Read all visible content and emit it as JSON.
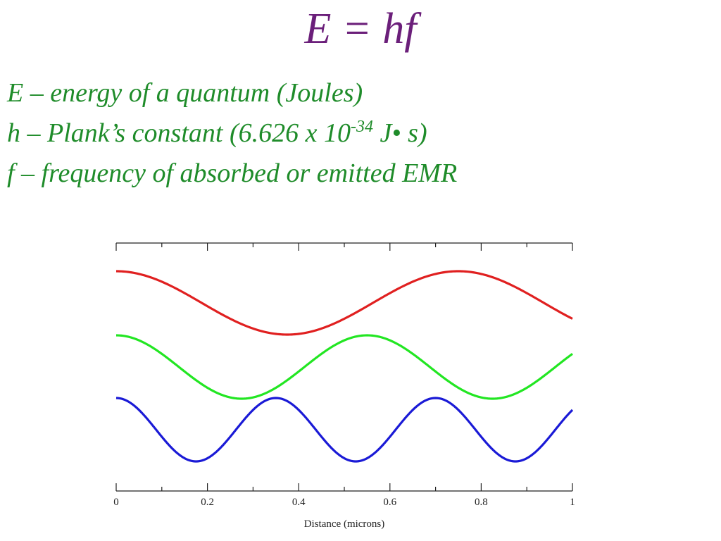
{
  "slide": {
    "title": "E = hf",
    "definitions": {
      "e_line": "E – energy of a quantum (Joules)",
      "h_prefix": "h – Plank’s constant (6.626 x 10",
      "h_exponent": "-34",
      "h_suffix": " J• s)",
      "f_line": "f – frequency of absorbed or emitted EMR"
    }
  },
  "chart_data": {
    "type": "line",
    "xlabel": "Distance (microns)",
    "xlim": [
      0,
      1
    ],
    "x_ticks": [
      0,
      0.2,
      0.4,
      0.6,
      0.8,
      1
    ],
    "x_tick_labels": [
      "0",
      "0.2",
      "0.4",
      "0.6",
      "0.8",
      "1"
    ],
    "ylabel": "",
    "grid": false,
    "legend": "none",
    "series": [
      {
        "color": "#e02020",
        "wavelength_microns": 0.75,
        "phase": "starts at crest"
      },
      {
        "color": "#22e622",
        "wavelength_microns": 0.55,
        "phase": "starts at crest"
      },
      {
        "color": "#1a1ad6",
        "wavelength_microns": 0.35,
        "phase": "starts at crest"
      }
    ]
  }
}
